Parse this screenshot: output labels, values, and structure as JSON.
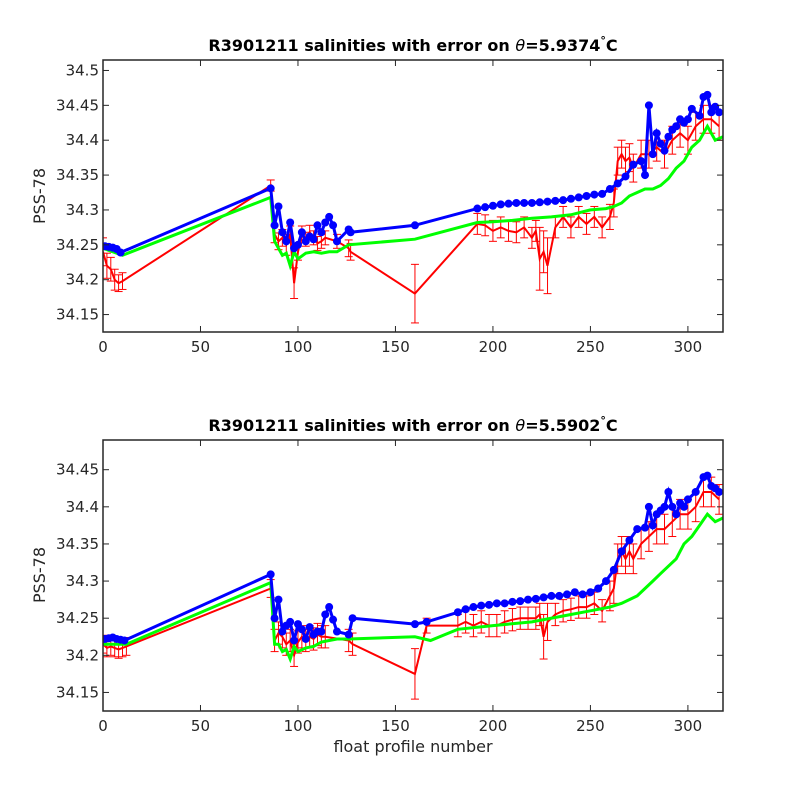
{
  "figure_xlabel": "float profile number",
  "chart_data": [
    {
      "type": "line",
      "title_prefix": "R3901211 salinities with error on ",
      "title_theta": "θ",
      "title_value": "=5.9374",
      "title_degree": "°",
      "title_unit": "C",
      "xlabel": "",
      "ylabel": "PSS-78",
      "xlim": [
        0,
        318
      ],
      "ylim": [
        34.125,
        34.515
      ],
      "xticks": [
        0,
        50,
        100,
        150,
        200,
        250,
        300
      ],
      "yticks": [
        34.15,
        34.2,
        34.25,
        34.3,
        34.35,
        34.4,
        34.45,
        34.5
      ],
      "grid": false,
      "colors": {
        "measured": "#0000ff",
        "mapped": "#00ff00",
        "error": "#ff0000"
      },
      "series": [
        {
          "role": "measured",
          "x": [
            1,
            3,
            5,
            7,
            9,
            86,
            88,
            90,
            92,
            94,
            96,
            98,
            100,
            102,
            104,
            106,
            108,
            110,
            112,
            114,
            116,
            118,
            120,
            126,
            127,
            160,
            192,
            196,
            200,
            204,
            208,
            212,
            216,
            220,
            224,
            228,
            232,
            236,
            240,
            244,
            248,
            252,
            256,
            260,
            264,
            268,
            272,
            276,
            278,
            280,
            282,
            284,
            286,
            288,
            290,
            292,
            294,
            296,
            298,
            300,
            302,
            306,
            308,
            310,
            312,
            314,
            316
          ],
          "y": [
            34.248,
            34.247,
            34.246,
            34.244,
            34.239,
            34.331,
            34.278,
            34.305,
            34.268,
            34.255,
            34.282,
            34.245,
            34.25,
            34.268,
            34.255,
            34.262,
            34.258,
            34.278,
            34.268,
            34.282,
            34.29,
            34.278,
            34.255,
            34.272,
            34.268,
            34.278,
            34.302,
            34.304,
            34.306,
            34.308,
            34.309,
            34.31,
            34.31,
            34.31,
            34.311,
            34.312,
            34.313,
            34.314,
            34.316,
            34.318,
            34.32,
            34.322,
            34.323,
            34.33,
            34.338,
            34.348,
            34.365,
            34.37,
            34.35,
            34.45,
            34.38,
            34.41,
            34.395,
            34.385,
            34.405,
            34.415,
            34.42,
            34.43,
            34.425,
            34.43,
            34.445,
            34.435,
            34.462,
            34.465,
            34.44,
            34.448,
            34.44
          ]
        },
        {
          "role": "mapped",
          "x": [
            0,
            10,
            86,
            88,
            90,
            92,
            94,
            96,
            98,
            100,
            104,
            108,
            112,
            116,
            120,
            126,
            160,
            192,
            200,
            210,
            220,
            230,
            240,
            250,
            258,
            262,
            266,
            270,
            274,
            278,
            282,
            286,
            290,
            294,
            298,
            302,
            306,
            310,
            314,
            318
          ],
          "y": [
            34.245,
            34.235,
            34.318,
            34.255,
            34.245,
            34.235,
            34.238,
            34.22,
            34.24,
            34.23,
            34.238,
            34.24,
            34.238,
            34.24,
            34.24,
            34.25,
            34.258,
            34.282,
            34.283,
            34.285,
            34.288,
            34.29,
            34.293,
            34.3,
            34.302,
            34.305,
            34.31,
            34.32,
            34.325,
            34.33,
            34.33,
            34.335,
            34.345,
            34.36,
            34.37,
            34.39,
            34.4,
            34.42,
            34.4,
            34.405
          ]
        },
        {
          "role": "error",
          "x": [
            0,
            2,
            4,
            6,
            8,
            10,
            86,
            88,
            90,
            92,
            94,
            96,
            98,
            100,
            102,
            104,
            106,
            108,
            110,
            112,
            114,
            120,
            126,
            127,
            160,
            192,
            196,
            200,
            204,
            208,
            212,
            216,
            220,
            222,
            224,
            226,
            228,
            232,
            236,
            240,
            244,
            248,
            252,
            256,
            260,
            262,
            264,
            266,
            268,
            270,
            272,
            276,
            280,
            284,
            288,
            292,
            296,
            300,
            304,
            308,
            312,
            316
          ],
          "y": [
            34.24,
            34.22,
            34.215,
            34.2,
            34.195,
            34.198,
            34.335,
            34.265,
            34.255,
            34.26,
            34.25,
            34.265,
            34.195,
            34.24,
            34.265,
            34.258,
            34.268,
            34.26,
            34.252,
            34.255,
            34.26,
            34.255,
            34.245,
            34.24,
            34.18,
            34.28,
            34.278,
            34.27,
            34.275,
            34.27,
            34.268,
            34.275,
            34.26,
            34.27,
            34.23,
            34.24,
            34.22,
            34.275,
            34.29,
            34.275,
            34.29,
            34.28,
            34.29,
            34.275,
            34.29,
            34.31,
            34.37,
            34.38,
            34.37,
            34.375,
            34.36,
            34.38,
            34.38,
            34.39,
            34.38,
            34.4,
            34.41,
            34.4,
            34.42,
            34.43,
            34.43,
            34.42
          ],
          "err": [
            0.02,
            0.018,
            0.017,
            0.015,
            0.012,
            0.012,
            0.008,
            0.012,
            0.012,
            0.012,
            0.015,
            0.012,
            0.022,
            0.012,
            0.012,
            0.01,
            0.01,
            0.01,
            0.01,
            0.01,
            0.01,
            0.01,
            0.012,
            0.012,
            0.042,
            0.015,
            0.015,
            0.015,
            0.015,
            0.015,
            0.015,
            0.015,
            0.015,
            0.015,
            0.045,
            0.03,
            0.04,
            0.015,
            0.015,
            0.015,
            0.015,
            0.015,
            0.015,
            0.015,
            0.018,
            0.02,
            0.02,
            0.02,
            0.02,
            0.02,
            0.02,
            0.02,
            0.02,
            0.02,
            0.02,
            0.02,
            0.02,
            0.02,
            0.02,
            0.02,
            0.02,
            0.02
          ]
        }
      ]
    },
    {
      "type": "line",
      "title_prefix": "R3901211 salinities with error on ",
      "title_theta": "θ",
      "title_value": "=5.5902",
      "title_degree": "°",
      "title_unit": "C",
      "xlabel": "float profile number",
      "ylabel": "PSS-78",
      "xlim": [
        0,
        318
      ],
      "ylim": [
        34.125,
        34.49
      ],
      "xticks": [
        0,
        50,
        100,
        150,
        200,
        250,
        300
      ],
      "yticks": [
        34.15,
        34.2,
        34.25,
        34.3,
        34.35,
        34.4,
        34.45
      ],
      "grid": false,
      "colors": {
        "measured": "#0000ff",
        "mapped": "#00ff00",
        "error": "#ff0000"
      },
      "series": [
        {
          "role": "measured",
          "x": [
            1,
            3,
            5,
            7,
            9,
            11,
            86,
            88,
            90,
            92,
            94,
            96,
            98,
            100,
            102,
            104,
            106,
            108,
            110,
            112,
            114,
            116,
            118,
            120,
            126,
            128,
            160,
            166,
            182,
            186,
            190,
            194,
            198,
            202,
            206,
            210,
            214,
            218,
            222,
            226,
            230,
            234,
            238,
            242,
            246,
            250,
            254,
            258,
            262,
            266,
            270,
            274,
            278,
            280,
            282,
            284,
            286,
            288,
            290,
            292,
            294,
            296,
            298,
            300,
            304,
            308,
            310,
            312,
            314,
            316
          ],
          "y": [
            34.222,
            34.223,
            34.224,
            34.222,
            34.221,
            34.22,
            34.309,
            34.25,
            34.275,
            34.232,
            34.24,
            34.245,
            34.22,
            34.242,
            34.235,
            34.222,
            34.238,
            34.228,
            34.232,
            34.232,
            34.255,
            34.265,
            34.248,
            34.232,
            34.228,
            34.25,
            34.242,
            34.245,
            34.258,
            34.262,
            34.265,
            34.267,
            34.268,
            34.27,
            34.27,
            34.272,
            34.273,
            34.275,
            34.276,
            34.278,
            34.28,
            34.28,
            34.282,
            34.285,
            34.282,
            34.285,
            34.29,
            34.3,
            34.315,
            34.34,
            34.355,
            34.37,
            34.372,
            34.4,
            34.375,
            34.39,
            34.395,
            34.4,
            34.42,
            34.4,
            34.39,
            34.405,
            34.4,
            34.41,
            34.42,
            34.44,
            34.442,
            34.428,
            34.425,
            34.42
          ]
        },
        {
          "role": "mapped",
          "x": [
            0,
            12,
            86,
            88,
            90,
            92,
            94,
            96,
            98,
            100,
            104,
            108,
            112,
            116,
            120,
            126,
            160,
            168,
            182,
            200,
            220,
            240,
            250,
            260,
            266,
            270,
            274,
            278,
            282,
            286,
            290,
            294,
            298,
            302,
            306,
            310,
            314,
            318
          ],
          "y": [
            34.215,
            34.215,
            34.298,
            34.215,
            34.215,
            34.205,
            34.208,
            34.195,
            34.212,
            34.205,
            34.21,
            34.212,
            34.218,
            34.22,
            34.222,
            34.222,
            34.225,
            34.22,
            34.235,
            34.24,
            34.245,
            34.255,
            34.26,
            34.265,
            34.27,
            34.275,
            34.28,
            34.29,
            34.3,
            34.31,
            34.32,
            34.33,
            34.35,
            34.36,
            34.375,
            34.39,
            34.38,
            34.385
          ]
        },
        {
          "role": "error",
          "x": [
            0,
            2,
            4,
            6,
            8,
            10,
            12,
            86,
            88,
            90,
            92,
            94,
            96,
            98,
            100,
            102,
            104,
            106,
            108,
            110,
            112,
            114,
            126,
            128,
            160,
            166,
            182,
            186,
            190,
            194,
            198,
            202,
            206,
            210,
            214,
            218,
            222,
            224,
            226,
            228,
            232,
            236,
            240,
            244,
            248,
            252,
            256,
            260,
            262,
            264,
            266,
            268,
            270,
            272,
            276,
            280,
            284,
            288,
            292,
            296,
            300,
            304,
            308,
            312,
            316
          ],
          "y": [
            34.215,
            34.21,
            34.212,
            34.21,
            34.208,
            34.21,
            34.212,
            34.29,
            34.22,
            34.23,
            34.225,
            34.215,
            34.22,
            34.2,
            34.218,
            34.225,
            34.22,
            34.225,
            34.222,
            34.228,
            34.225,
            34.225,
            34.22,
            34.215,
            34.175,
            34.24,
            34.24,
            34.245,
            34.24,
            34.245,
            34.24,
            34.24,
            34.245,
            34.248,
            34.25,
            34.25,
            34.25,
            34.255,
            34.225,
            34.245,
            34.255,
            34.26,
            34.262,
            34.265,
            34.265,
            34.27,
            34.26,
            34.28,
            34.29,
            34.33,
            34.34,
            34.33,
            34.34,
            34.33,
            34.35,
            34.36,
            34.37,
            34.37,
            34.38,
            34.39,
            34.39,
            34.4,
            34.42,
            34.42,
            34.41
          ],
          "err": [
            0.012,
            0.012,
            0.012,
            0.012,
            0.012,
            0.012,
            0.012,
            0.012,
            0.015,
            0.015,
            0.015,
            0.015,
            0.015,
            0.015,
            0.015,
            0.015,
            0.015,
            0.015,
            0.015,
            0.015,
            0.015,
            0.015,
            0.015,
            0.015,
            0.034,
            0.01,
            0.015,
            0.015,
            0.015,
            0.015,
            0.015,
            0.015,
            0.015,
            0.015,
            0.015,
            0.015,
            0.015,
            0.015,
            0.03,
            0.025,
            0.015,
            0.015,
            0.015,
            0.015,
            0.015,
            0.015,
            0.015,
            0.02,
            0.02,
            0.02,
            0.02,
            0.02,
            0.02,
            0.02,
            0.02,
            0.02,
            0.02,
            0.02,
            0.02,
            0.02,
            0.02,
            0.02,
            0.02,
            0.02,
            0.02
          ]
        }
      ]
    }
  ]
}
